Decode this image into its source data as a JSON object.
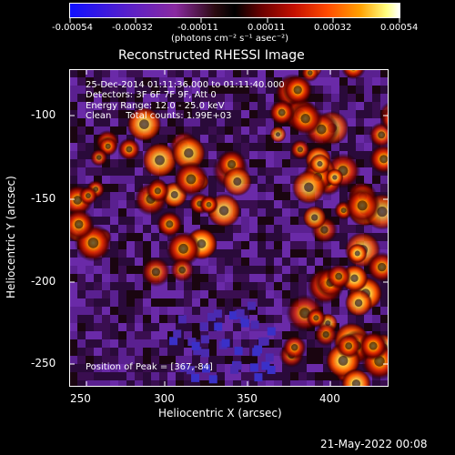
{
  "colorbar": {
    "tick_labels": [
      "-0.00054",
      "-0.00032",
      "-0.00011",
      "0.00011",
      "0.00032",
      "0.00054"
    ],
    "units": "(photons cm⁻² s⁻¹ asec⁻²)"
  },
  "title": "Reconstructed RHESSI Image",
  "overlay": {
    "line1": "25-Dec-2014 01:11:36.000 to 01:11:40.000",
    "line2": "Detectors: 3F 6F 7F 9F, Att 0",
    "line3": "Energy Range: 12.0 - 25.0 keV",
    "line4": "Clean     Total counts: 1.99E+03",
    "peak": "Position of Peak = [367,-84]"
  },
  "axes": {
    "xlabel": "Heliocentric X (arcsec)",
    "ylabel": "Heliocentric Y (arcsec)",
    "xticks": [
      "250",
      "300",
      "350",
      "400"
    ],
    "yticks": [
      "-100",
      "-150",
      "-200",
      "-250"
    ]
  },
  "footer": {
    "timestamp": "21-May-2022 00:08"
  },
  "colors": {
    "background": "#000000",
    "foreground": "#ffffff"
  }
}
